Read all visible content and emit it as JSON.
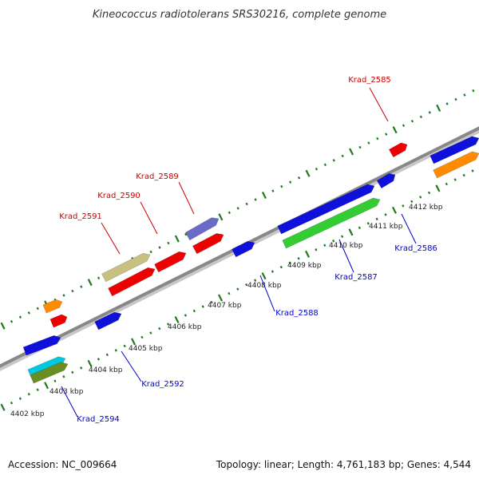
{
  "title": "Kineococcus radiotolerans SRS30216, complete genome",
  "footer": {
    "accession": "Accession: NC_009664",
    "summary": "Topology: linear; Length: 4,761,183 bp; Genes: 4,544"
  },
  "colors": {
    "backbone": "#888888",
    "ticks": "#1e7a1e",
    "label_forward": "#cc0000",
    "label_reverse": "#0000cc"
  },
  "axis": {
    "tick_labels": [
      "4402 kbp",
      "4403 kbp",
      "4404 kbp",
      "4405 kbp",
      "4406 kbp",
      "4407 kbp",
      "4408 kbp",
      "4409 kbp",
      "4410 kbp",
      "4411 kbp",
      "4412 kbp"
    ]
  },
  "gene_labels": [
    {
      "text": "Krad_2585",
      "strand": "forward"
    },
    {
      "text": "Krad_2589",
      "strand": "forward"
    },
    {
      "text": "Krad_2590",
      "strand": "forward"
    },
    {
      "text": "Krad_2591",
      "strand": "forward"
    },
    {
      "text": "Krad_2586",
      "strand": "reverse"
    },
    {
      "text": "Krad_2587",
      "strand": "reverse"
    },
    {
      "text": "Krad_2588",
      "strand": "reverse"
    },
    {
      "text": "Krad_2592",
      "strand": "reverse"
    },
    {
      "text": "Krad_2594",
      "strand": "reverse"
    }
  ],
  "features": [
    {
      "color": "#ff8c00",
      "kind": "gene"
    },
    {
      "color": "#ee0000",
      "kind": "gene"
    },
    {
      "color": "#1010dd",
      "kind": "gene"
    },
    {
      "color": "#00c8e0",
      "kind": "gene"
    },
    {
      "color": "#6b8e23",
      "kind": "gene"
    },
    {
      "color": "#c8c080",
      "kind": "gene"
    },
    {
      "color": "#ee0000",
      "kind": "gene"
    },
    {
      "color": "#1010dd",
      "kind": "gene"
    },
    {
      "color": "#ee0000",
      "kind": "gene"
    },
    {
      "color": "#6a6ac8",
      "kind": "gene"
    },
    {
      "color": "#ee0000",
      "kind": "gene"
    },
    {
      "color": "#1010dd",
      "kind": "gene"
    },
    {
      "color": "#1010dd",
      "kind": "gene"
    },
    {
      "color": "#33cc33",
      "kind": "gene"
    },
    {
      "color": "#1010dd",
      "kind": "gene"
    },
    {
      "color": "#ee0000",
      "kind": "gene"
    },
    {
      "color": "#1010dd",
      "kind": "gene"
    },
    {
      "color": "#ff8c00",
      "kind": "gene"
    }
  ]
}
